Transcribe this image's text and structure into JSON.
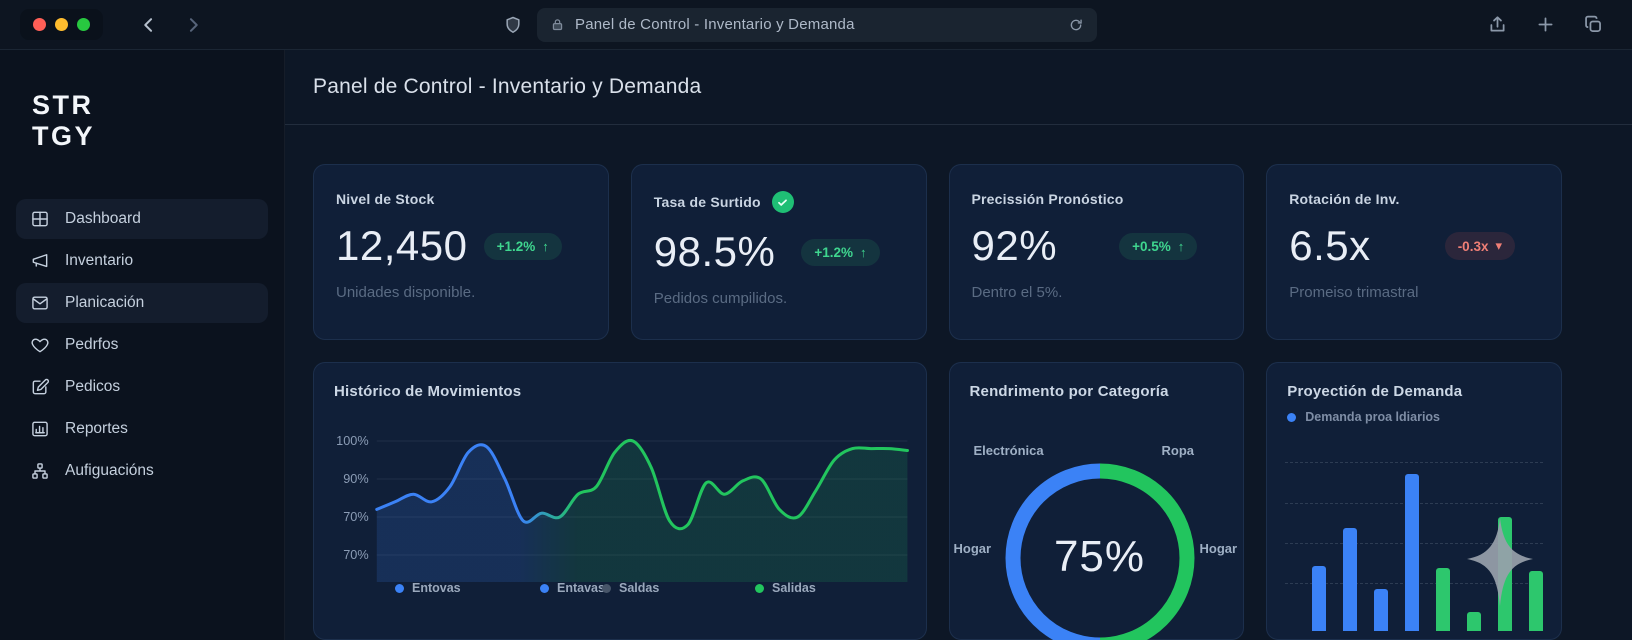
{
  "browser": {
    "address_title": "Panel de Control - Inventario y Demanda",
    "window_controls": {
      "close": "#ff5f57",
      "minimize": "#febc2e",
      "zoom": "#28c840"
    }
  },
  "sidebar": {
    "logo_line1": "STR",
    "logo_line2": "TGY",
    "items": [
      {
        "label": "Dashboard",
        "icon": "dashboard-grid",
        "active": true
      },
      {
        "label": "Inventario",
        "icon": "megaphone",
        "active": false
      },
      {
        "label": "Planicación",
        "icon": "mail",
        "active": true
      },
      {
        "label": "Pedrfos",
        "icon": "heart",
        "active": false
      },
      {
        "label": "Pedicos",
        "icon": "edit",
        "active": false
      },
      {
        "label": "Reportes",
        "icon": "bar-chart",
        "active": false
      },
      {
        "label": "Aufiguacións",
        "icon": "sitemap",
        "active": false
      }
    ]
  },
  "page": {
    "title": "Panel de Control - Inventario y Demanda"
  },
  "kpis": [
    {
      "label": "Nivel de Stock",
      "value": "12,450",
      "badge_text": "+1.2%",
      "badge_arrow": "↑",
      "badge_type": "up",
      "subtitle": "Unidades disponible.",
      "has_check": false
    },
    {
      "label": "Tasa de Surtido",
      "value": "98.5%",
      "badge_text": "+1.2%",
      "badge_arrow": "↑",
      "badge_type": "up",
      "subtitle": "Pedidos cumpilidos.",
      "has_check": true
    },
    {
      "label": "Precissión Pronóstico",
      "value": "92%",
      "badge_text": "+0.5%",
      "badge_arrow": "↑",
      "badge_type": "up",
      "subtitle": "Dentro el 5%.",
      "has_check": false
    },
    {
      "label": "Rotación de Inv.",
      "value": "6.5x",
      "badge_text": "-0.3x",
      "badge_arrow": "▾",
      "badge_type": "down",
      "subtitle": "Promeiso trimastral",
      "has_check": false
    }
  ],
  "colors": {
    "accent_blue": "#3b82f6",
    "accent_green": "#22c55e",
    "legend_slate": "#475569",
    "bar_blue": "#3b82f6",
    "bar_green": "#2dc76d",
    "badge_up": "#3fd68f",
    "badge_down": "#f07f76"
  },
  "chart_data": [
    {
      "type": "area",
      "title": "Histórico de Movimientos",
      "y_ticks": [
        "100%",
        "90%",
        "70%",
        "70%"
      ],
      "y_range": [
        70,
        100
      ],
      "grid": true,
      "legend": [
        {
          "label": "Entovas",
          "color": "#3b82f6"
        },
        {
          "label": "Entavas",
          "color": "#3b82f6"
        },
        {
          "label": "Saldas",
          "color": "#475569"
        },
        {
          "label": "Salidas",
          "color": "#22c55e"
        }
      ],
      "series": [
        {
          "name": "Movimientos",
          "values_pct": [
            82,
            84,
            86,
            84,
            88,
            97,
            98.5,
            90,
            79,
            81,
            80,
            86,
            88,
            97,
            100,
            93,
            79,
            78,
            89,
            86,
            89.5,
            90,
            82,
            80,
            87,
            95,
            98,
            98,
            98,
            97.5
          ]
        }
      ]
    },
    {
      "type": "donut",
      "title": "Rendrimento por Categoría",
      "center_label": "75%",
      "segments": [
        {
          "side": "left",
          "color": "#3b82f6",
          "value": 50
        },
        {
          "side": "right",
          "color": "#22c55e",
          "value": 50
        }
      ],
      "callouts": [
        {
          "text": "Electrónica",
          "pos": "top-left"
        },
        {
          "text": "Ropa",
          "pos": "top-right"
        },
        {
          "text": "Hogar",
          "pos": "left"
        },
        {
          "text": "Hogar",
          "pos": "right"
        }
      ]
    },
    {
      "type": "bar",
      "title": "Proyectión de Demanda",
      "legend": [
        {
          "label": "Demanda proa ldiarios",
          "color": "#3b82f6"
        }
      ],
      "values_rel": [
        65,
        103,
        42,
        157,
        63,
        19,
        114,
        60
      ],
      "bar_colors": [
        "blue",
        "blue",
        "blue",
        "blue",
        "green",
        "green",
        "green",
        "green"
      ],
      "grid": "dashed-horizontal"
    }
  ]
}
